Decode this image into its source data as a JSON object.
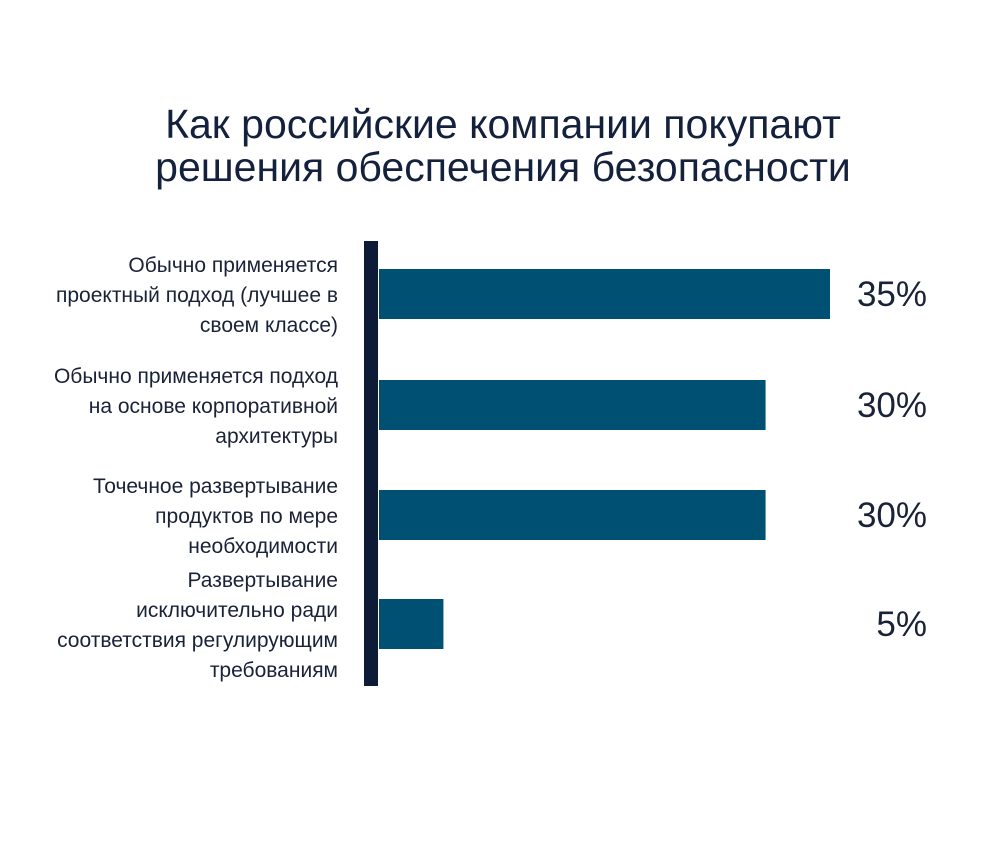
{
  "chart_data": {
    "type": "bar",
    "orientation": "horizontal",
    "title_lines": [
      "Как российские компании покупают",
      "решения обеспечения безопасности"
    ],
    "categories": [
      [
        "Обычно применяется",
        "проектный подход (лучшее в",
        "своем классе)"
      ],
      [
        "Обычно применяется подход",
        "на основе корпоративной",
        "архитектуры"
      ],
      [
        "Точечное развертывание",
        "продуктов по мере",
        "необходимости"
      ],
      [
        "Развертывание",
        "исключительно ради",
        "соответствия регулирующим",
        "требованиям"
      ]
    ],
    "values": [
      35,
      30,
      30,
      5
    ],
    "value_labels": [
      "35%",
      "30%",
      "30%",
      "5%"
    ],
    "unit": "%",
    "xlim": [
      0,
      35
    ],
    "grid": false,
    "legend": "none"
  },
  "colors": {
    "bar": "#005073",
    "axis": "#0d1b36",
    "text": "#1a2238",
    "background": "#ffffff"
  }
}
